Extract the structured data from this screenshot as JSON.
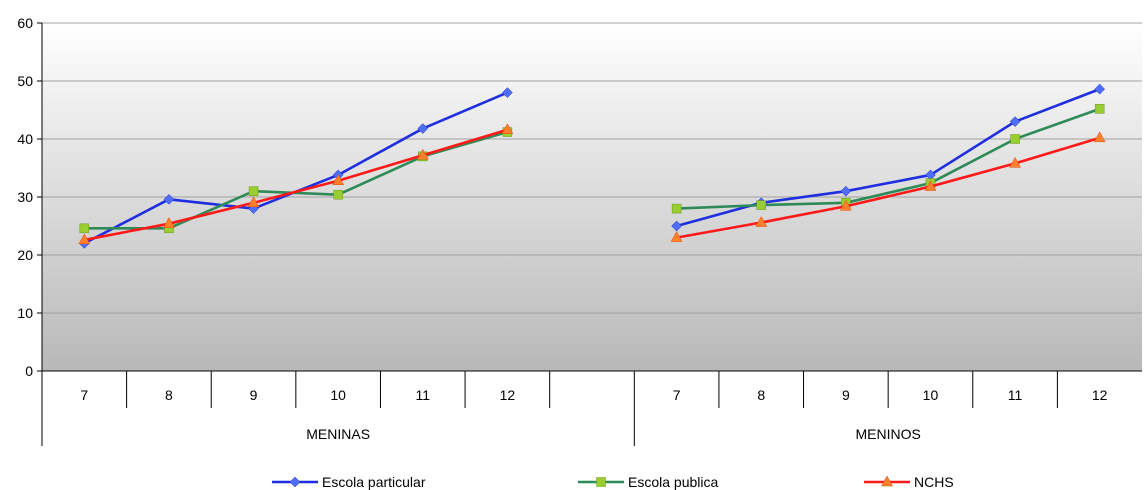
{
  "chart_data": {
    "type": "line",
    "ylim": [
      0,
      60
    ],
    "yticks": [
      0,
      10,
      20,
      30,
      40,
      50,
      60
    ],
    "grid": true,
    "legend_position": "bottom",
    "groups": [
      {
        "label": "MENINAS",
        "categories": [
          "7",
          "8",
          "9",
          "10",
          "11",
          "12",
          ""
        ]
      },
      {
        "label": "MENINOS",
        "categories": [
          "7",
          "8",
          "9",
          "10",
          "11",
          "12"
        ]
      }
    ],
    "series": [
      {
        "name": "Escola particular",
        "color": "#1f2fe0",
        "marker_color": "#4f6dff",
        "marker": "diamond",
        "values": [
          [
            22,
            29.6,
            28,
            33.8,
            41.8,
            48
          ],
          [
            25,
            29,
            31,
            33.8,
            43,
            48.6
          ]
        ]
      },
      {
        "name": "Escola publica",
        "color": "#2e8b57",
        "marker_color": "#9acd32",
        "marker": "square",
        "values": [
          [
            24.6,
            24.6,
            31,
            30.4,
            37,
            41.2
          ],
          [
            28,
            28.6,
            29,
            32.4,
            40,
            45.2
          ]
        ]
      },
      {
        "name": "NCHS",
        "color": "#ff1a1a",
        "marker_color": "#ff7f2a",
        "marker": "triangle",
        "values": [
          [
            22.6,
            25.4,
            29,
            32.8,
            37.2,
            41.6
          ],
          [
            23,
            25.6,
            28.4,
            31.8,
            35.8,
            40.2
          ]
        ]
      }
    ]
  }
}
